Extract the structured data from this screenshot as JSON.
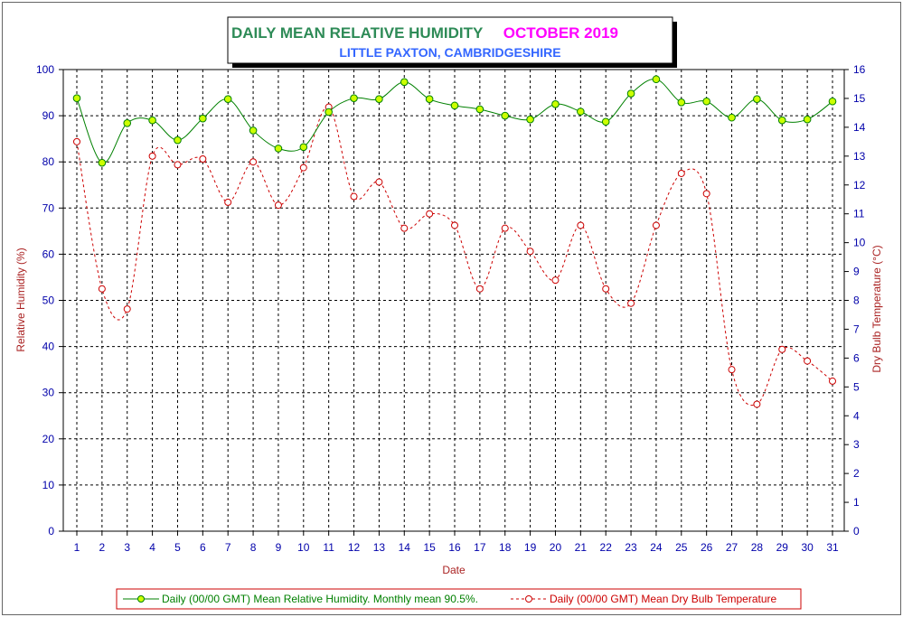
{
  "title": {
    "main": "DAILY MEAN RELATIVE HUMIDITY",
    "period": "OCTOBER 2019",
    "location": "LITTLE PAXTON, CAMBRIDGESHIRE"
  },
  "colors": {
    "title_main": "#2e8b57",
    "title_period": "#ff00ff",
    "title_location": "#3366ff",
    "axis_text": "#0000aa",
    "axis_label": "#aa2222",
    "humidity_line": "#008000",
    "humidity_marker_fill": "#ccff00",
    "temperature_line": "#cc0000",
    "grid": "#000000"
  },
  "chart_data": {
    "type": "line",
    "x_label": "Date",
    "y_left_label": "Relative Humidity (%)",
    "y_right_label": "Dry Bulb Temperature (°C)",
    "x": [
      1,
      2,
      3,
      4,
      5,
      6,
      7,
      8,
      9,
      10,
      11,
      12,
      13,
      14,
      15,
      16,
      17,
      18,
      19,
      20,
      21,
      22,
      23,
      24,
      25,
      26,
      27,
      28,
      29,
      30,
      31
    ],
    "x_ticks": [
      "1",
      "2",
      "3",
      "4",
      "5",
      "6",
      "7",
      "8",
      "9",
      "10",
      "11",
      "12",
      "13",
      "14",
      "15",
      "16",
      "17",
      "18",
      "19",
      "20",
      "21",
      "22",
      "23",
      "24",
      "25",
      "26",
      "27",
      "28",
      "29",
      "30",
      "31"
    ],
    "y_left_range": [
      0,
      100
    ],
    "y_left_ticks": [
      "0",
      "10",
      "20",
      "30",
      "40",
      "50",
      "60",
      "70",
      "80",
      "90",
      "100"
    ],
    "y_right_range": [
      0,
      16
    ],
    "y_right_ticks": [
      "0",
      "1",
      "2",
      "3",
      "4",
      "5",
      "6",
      "7",
      "8",
      "9",
      "10",
      "11",
      "12",
      "13",
      "14",
      "15",
      "16"
    ],
    "grid": true,
    "legend_position": "bottom",
    "series": [
      {
        "name": "Daily (00/00 GMT) Mean Relative Humidity. Monthly mean 90.5%.",
        "axis": "left",
        "style": "solid",
        "marker": "filled-circle",
        "values": [
          93.8,
          79.8,
          88.4,
          89.0,
          84.7,
          89.4,
          93.6,
          86.8,
          82.9,
          83.2,
          90.8,
          93.8,
          93.6,
          97.3,
          93.6,
          92.2,
          91.4,
          90.0,
          89.2,
          92.5,
          90.9,
          88.7,
          94.8,
          97.9,
          92.9,
          93.1,
          89.6,
          93.6,
          89.0,
          89.2,
          93.1
        ]
      },
      {
        "name": "Daily (00/00 GMT) Mean Dry Bulb Temperature",
        "axis": "right",
        "style": "dashed",
        "marker": "open-circle",
        "values": [
          13.5,
          8.4,
          7.7,
          13.0,
          12.7,
          12.9,
          11.4,
          12.8,
          11.3,
          12.6,
          14.7,
          11.6,
          12.1,
          10.5,
          11.0,
          10.6,
          8.4,
          10.5,
          9.7,
          8.7,
          10.6,
          8.4,
          7.9,
          10.6,
          12.4,
          11.7,
          5.6,
          4.4,
          6.3,
          5.9,
          5.2
        ]
      }
    ]
  }
}
